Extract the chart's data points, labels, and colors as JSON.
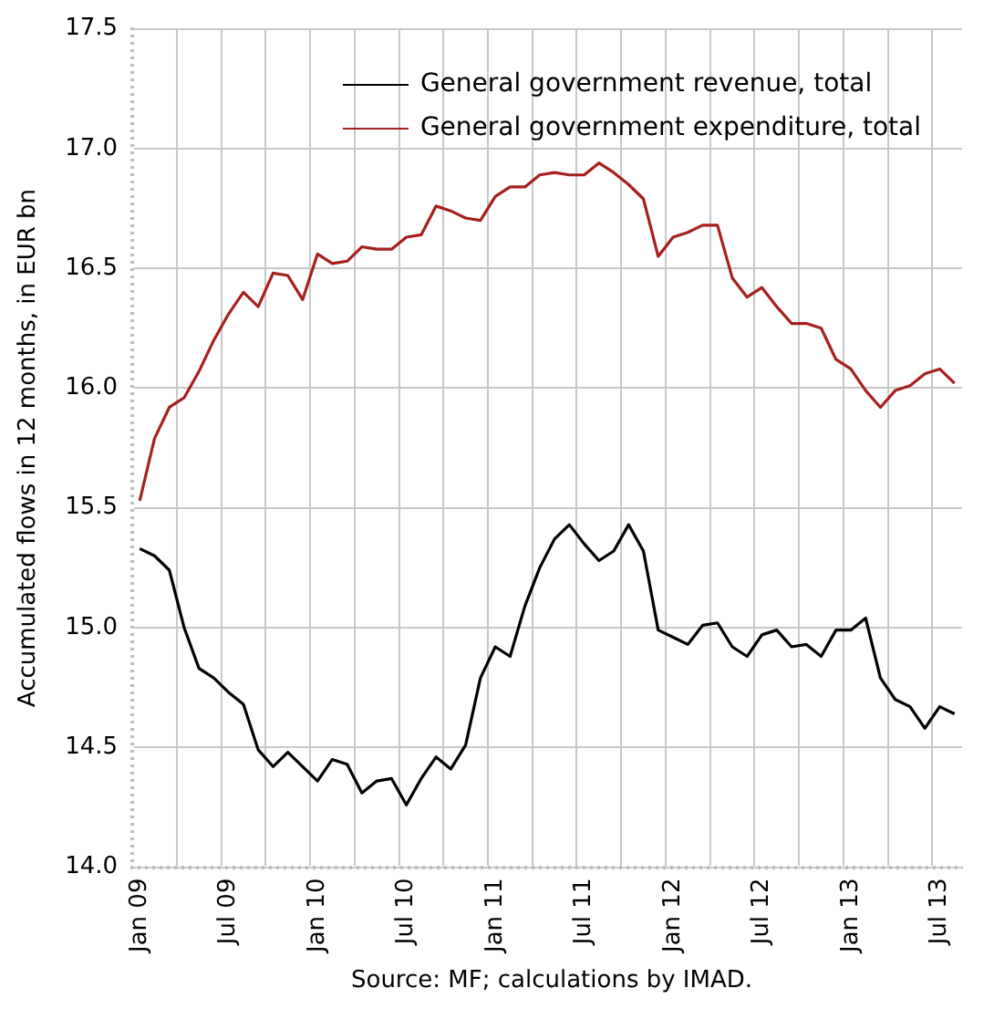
{
  "chart_data": {
    "type": "line",
    "ylabel": "Accumulated flows in 12 months, in EUR bn",
    "annotations": [
      "Source: MF; calculations by IMAD."
    ],
    "categories": [
      "Jan 09",
      null,
      null,
      null,
      null,
      null,
      "Jul 09",
      null,
      null,
      null,
      null,
      null,
      "Jan 10",
      null,
      null,
      null,
      null,
      null,
      "Jul 10",
      null,
      null,
      null,
      null,
      null,
      "Jan 11",
      null,
      null,
      null,
      null,
      null,
      "Jul 11",
      null,
      null,
      null,
      null,
      null,
      "Jan 12",
      null,
      null,
      null,
      null,
      null,
      "Jul 12",
      null,
      null,
      null,
      null,
      null,
      "Jan 13",
      null,
      null,
      null,
      null,
      null,
      "Jul 13",
      null
    ],
    "series": [
      {
        "name": "General government revenue, total",
        "color": "#000000",
        "values": [
          15.33,
          15.3,
          15.24,
          15.0,
          14.83,
          14.79,
          14.73,
          14.68,
          14.49,
          14.42,
          14.48,
          14.42,
          14.36,
          14.45,
          14.43,
          14.31,
          14.36,
          14.37,
          14.26,
          14.37,
          14.46,
          14.41,
          14.51,
          14.79,
          14.92,
          14.88,
          15.09,
          15.25,
          15.37,
          15.43,
          15.35,
          15.28,
          15.32,
          15.43,
          15.32,
          14.99,
          14.96,
          14.93,
          15.01,
          15.02,
          14.92,
          14.88,
          14.97,
          14.99,
          14.92,
          14.93,
          14.88,
          14.99,
          14.99,
          15.04,
          14.79,
          14.7,
          14.67,
          14.58,
          14.67,
          14.64
        ]
      },
      {
        "name": "General government expenditure, total",
        "color": "#a6201f",
        "values": [
          15.53,
          15.79,
          15.92,
          15.96,
          16.07,
          16.2,
          16.31,
          16.4,
          16.34,
          16.48,
          16.47,
          16.37,
          16.56,
          16.52,
          16.53,
          16.59,
          16.58,
          16.58,
          16.63,
          16.64,
          16.76,
          16.74,
          16.71,
          16.7,
          16.8,
          16.84,
          16.84,
          16.89,
          16.9,
          16.89,
          16.89,
          16.94,
          16.9,
          16.85,
          16.79,
          16.55,
          16.63,
          16.65,
          16.68,
          16.68,
          16.46,
          16.38,
          16.42,
          16.34,
          16.27,
          16.27,
          16.25,
          16.12,
          16.08,
          15.99,
          15.92,
          15.99,
          16.01,
          16.06,
          16.08,
          16.02
        ]
      }
    ],
    "ylim": [
      14.0,
      17.5
    ],
    "yticks": [
      {
        "value": 14.0,
        "label": "14.0"
      },
      {
        "value": 14.5,
        "label": "14.5"
      },
      {
        "value": 15.0,
        "label": "15.0"
      },
      {
        "value": 15.5,
        "label": "15.5"
      },
      {
        "value": 16.0,
        "label": "16.0"
      },
      {
        "value": 16.5,
        "label": "16.5"
      },
      {
        "value": 17.0,
        "label": "17.0"
      },
      {
        "value": 17.5,
        "label": "17.5"
      }
    ],
    "grid": true,
    "legend": "top right",
    "marker": "none",
    "line_style": "solid"
  }
}
